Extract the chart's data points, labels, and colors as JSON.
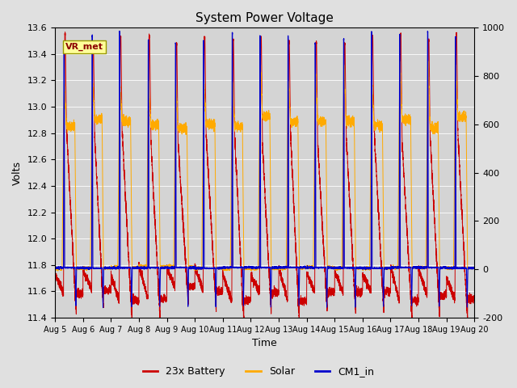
{
  "title": "System Power Voltage",
  "xlabel": "Time",
  "ylabel_left": "Volts",
  "ylim_left": [
    11.4,
    13.6
  ],
  "ylim_right": [
    -200,
    1000
  ],
  "x_tick_labels": [
    "Aug 5",
    "Aug 6",
    "Aug 7",
    "Aug 8",
    "Aug 9",
    "Aug 10",
    "Aug 11",
    "Aug 12",
    "Aug 13",
    "Aug 14",
    "Aug 15",
    "Aug 16",
    "Aug 17",
    "Aug 18",
    "Aug 19",
    "Aug 20"
  ],
  "yticks_left": [
    11.4,
    11.6,
    11.8,
    12.0,
    12.2,
    12.4,
    12.6,
    12.8,
    13.0,
    13.2,
    13.4,
    13.6
  ],
  "yticks_right": [
    -200,
    0,
    200,
    400,
    600,
    800,
    1000
  ],
  "legend_labels": [
    "23x Battery",
    "Solar",
    "CM1_in"
  ],
  "legend_colors": [
    "#cc0000",
    "#ffaa00",
    "#0000cc"
  ],
  "annotation_text": "VR_met",
  "n_days": 15,
  "pts_per_day": 500
}
